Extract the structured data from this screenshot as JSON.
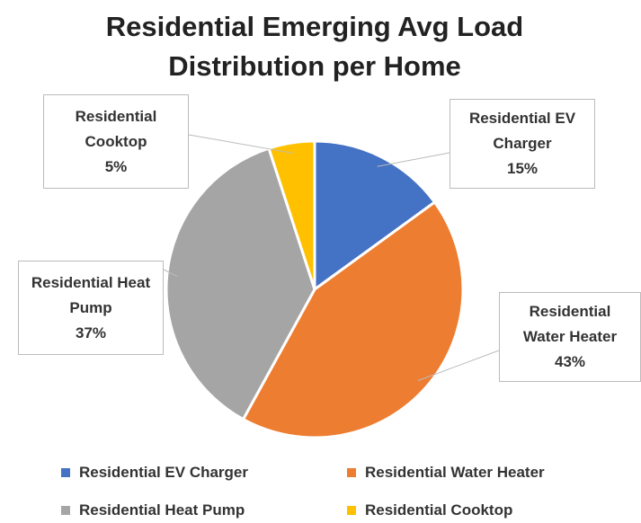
{
  "chart_data": {
    "type": "pie",
    "title": "Residential Emerging Avg Load Distribution per Home",
    "categories": [
      "Residential EV Charger",
      "Residential Water Heater",
      "Residential Heat Pump",
      "Residential Cooktop"
    ],
    "values": [
      15,
      43,
      37,
      5
    ],
    "value_labels": [
      "15%",
      "43%",
      "37%",
      "5%"
    ],
    "colors": [
      "#4472c4",
      "#ed7d31",
      "#a5a5a5",
      "#ffc000"
    ],
    "legend": "bottom"
  }
}
